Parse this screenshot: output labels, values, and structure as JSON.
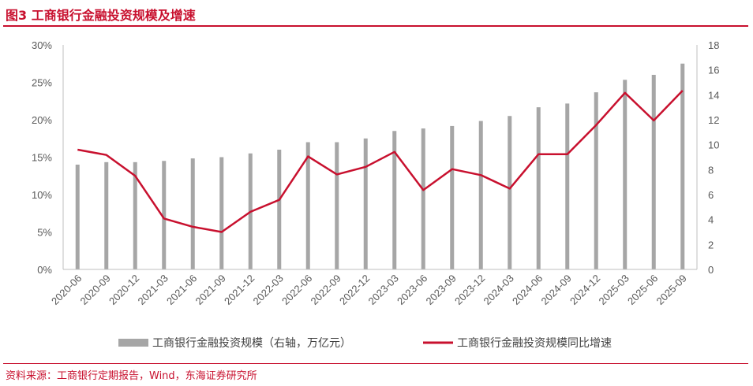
{
  "header": {
    "title": "图3  工商银行金融投资规模及增速"
  },
  "footer": {
    "source": "资料来源：工商银行定期报告，Wind，东海证券研究所"
  },
  "chart_data": {
    "type": "bar+line",
    "categories": [
      "2020-06",
      "2020-09",
      "2020-12",
      "2021-03",
      "2021-06",
      "2021-09",
      "2021-12",
      "2022-03",
      "2022-06",
      "2022-09",
      "2022-12",
      "2023-03",
      "2023-06",
      "2023-09",
      "2023-12",
      "2024-03",
      "2024-06",
      "2024-09",
      "2024-12",
      "2025-03",
      "2025-06",
      "2025-09"
    ],
    "series": [
      {
        "name": "工商银行金融投资规模（右轴，万亿元）",
        "type": "bar",
        "axis": "right",
        "color": "#a6a6a6",
        "values": [
          8.4,
          8.6,
          8.6,
          8.7,
          8.9,
          9.0,
          9.3,
          9.6,
          10.2,
          10.2,
          10.5,
          11.1,
          11.3,
          11.5,
          11.9,
          12.3,
          13.0,
          13.3,
          14.2,
          15.2,
          15.6,
          16.5
        ]
      },
      {
        "name": "工商银行金融投资规模同比增速",
        "type": "line",
        "axis": "left",
        "color": "#c8102e",
        "values": [
          16.0,
          15.3,
          12.5,
          6.8,
          5.7,
          5.0,
          7.7,
          9.3,
          15.1,
          12.7,
          13.7,
          15.7,
          10.6,
          13.4,
          12.6,
          10.8,
          15.4,
          15.4,
          19.3,
          23.6,
          19.9,
          23.9
        ]
      }
    ],
    "yLeft": {
      "min": 0,
      "max": 30,
      "step": 5,
      "tick_labels": [
        "0%",
        "5%",
        "10%",
        "15%",
        "20%",
        "25%",
        "30%"
      ]
    },
    "yRight": {
      "min": 0,
      "max": 18,
      "step": 2,
      "tick_labels": [
        "0",
        "2",
        "4",
        "6",
        "8",
        "10",
        "12",
        "14",
        "16",
        "18"
      ]
    },
    "legend_position": "bottom"
  }
}
